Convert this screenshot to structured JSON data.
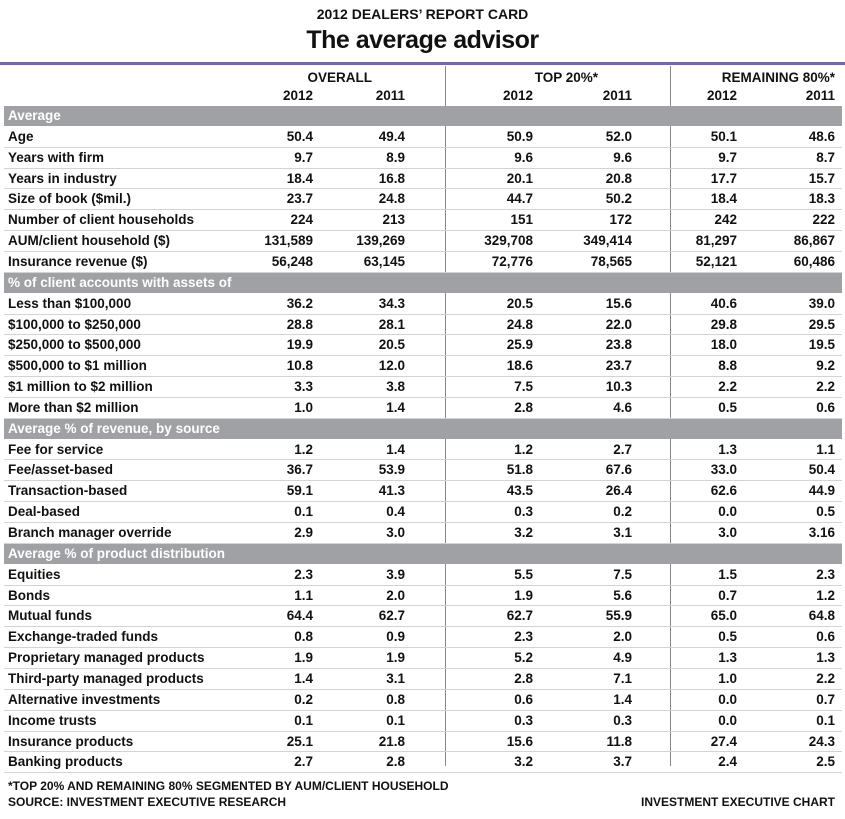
{
  "header": {
    "kicker": "2012 DEALERS’ REPORT CARD",
    "title": "The average advisor"
  },
  "columns": {
    "groups": [
      "OVERALL",
      "TOP 20%*",
      "REMAINING 80%*"
    ],
    "years": [
      "2012",
      "2011",
      "2012",
      "2011",
      "2012",
      "2011"
    ]
  },
  "sections": [
    {
      "title": "Average",
      "rows": [
        {
          "label": "Age",
          "values": [
            "50.4",
            "49.4",
            "50.9",
            "52.0",
            "50.1",
            "48.6"
          ]
        },
        {
          "label": "Years with firm",
          "values": [
            "9.7",
            "8.9",
            "9.6",
            "9.6",
            "9.7",
            "8.7"
          ]
        },
        {
          "label": "Years in industry",
          "values": [
            "18.4",
            "16.8",
            "20.1",
            "20.8",
            "17.7",
            "15.7"
          ]
        },
        {
          "label": "Size of book ($mil.)",
          "values": [
            "23.7",
            "24.8",
            "44.7",
            "50.2",
            "18.4",
            "18.3"
          ]
        },
        {
          "label": "Number of client households",
          "values": [
            "224",
            "213",
            "151",
            "172",
            "242",
            "222"
          ]
        },
        {
          "label": "AUM/client household ($)",
          "values": [
            "131,589",
            "139,269",
            "329,708",
            "349,414",
            "81,297",
            "86,867"
          ]
        },
        {
          "label": "Insurance revenue ($)",
          "values": [
            "56,248",
            "63,145",
            "72,776",
            "78,565",
            "52,121",
            "60,486"
          ]
        }
      ]
    },
    {
      "title": "% of client accounts with assets of",
      "rows": [
        {
          "label": "Less than $100,000",
          "values": [
            "36.2",
            "34.3",
            "20.5",
            "15.6",
            "40.6",
            "39.0"
          ]
        },
        {
          "label": "$100,000 to $250,000",
          "values": [
            "28.8",
            "28.1",
            "24.8",
            "22.0",
            "29.8",
            "29.5"
          ]
        },
        {
          "label": "$250,000 to $500,000",
          "values": [
            "19.9",
            "20.5",
            "25.9",
            "23.8",
            "18.0",
            "19.5"
          ]
        },
        {
          "label": "$500,000 to $1 million",
          "values": [
            "10.8",
            "12.0",
            "18.6",
            "23.7",
            "8.8",
            "9.2"
          ]
        },
        {
          "label": "$1 million to $2 million",
          "values": [
            "3.3",
            "3.8",
            "7.5",
            "10.3",
            "2.2",
            "2.2"
          ]
        },
        {
          "label": "More than $2 million",
          "values": [
            "1.0",
            "1.4",
            "2.8",
            "4.6",
            "0.5",
            "0.6"
          ]
        }
      ]
    },
    {
      "title": "Average % of revenue, by source",
      "rows": [
        {
          "label": "Fee for service",
          "values": [
            "1.2",
            "1.4",
            "1.2",
            "2.7",
            "1.3",
            "1.1"
          ]
        },
        {
          "label": "Fee/asset-based",
          "values": [
            "36.7",
            "53.9",
            "51.8",
            "67.6",
            "33.0",
            "50.4"
          ]
        },
        {
          "label": "Transaction-based",
          "values": [
            "59.1",
            "41.3",
            "43.5",
            "26.4",
            "62.6",
            "44.9"
          ]
        },
        {
          "label": "Deal-based",
          "values": [
            "0.1",
            "0.4",
            "0.3",
            "0.2",
            "0.0",
            "0.5"
          ]
        },
        {
          "label": "Branch manager override",
          "values": [
            "2.9",
            "3.0",
            "3.2",
            "3.1",
            "3.0",
            "3.16"
          ]
        }
      ]
    },
    {
      "title": "Average % of product distribution",
      "rows": [
        {
          "label": "Equities",
          "values": [
            "2.3",
            "3.9",
            "5.5",
            "7.5",
            "1.5",
            "2.3"
          ]
        },
        {
          "label": "Bonds",
          "values": [
            "1.1",
            "2.0",
            "1.9",
            "5.6",
            "0.7",
            "1.2"
          ]
        },
        {
          "label": "Mutual funds",
          "values": [
            "64.4",
            "62.7",
            "62.7",
            "55.9",
            "65.0",
            "64.8"
          ]
        },
        {
          "label": "Exchange-traded funds",
          "values": [
            "0.8",
            "0.9",
            "2.3",
            "2.0",
            "0.5",
            "0.6"
          ]
        },
        {
          "label": "Proprietary managed products",
          "values": [
            "1.9",
            "1.9",
            "5.2",
            "4.9",
            "1.3",
            "1.3"
          ]
        },
        {
          "label": "Third-party managed products",
          "values": [
            "1.4",
            "3.1",
            "2.8",
            "7.1",
            "1.0",
            "2.2"
          ]
        },
        {
          "label": "Alternative investments",
          "values": [
            "0.2",
            "0.8",
            "0.6",
            "1.4",
            "0.0",
            "0.7"
          ]
        },
        {
          "label": "Income trusts",
          "values": [
            "0.1",
            "0.1",
            "0.3",
            "0.3",
            "0.0",
            "0.1"
          ]
        },
        {
          "label": "Insurance products",
          "values": [
            "25.1",
            "21.8",
            "15.6",
            "11.8",
            "27.4",
            "24.3"
          ]
        },
        {
          "label": "Banking products",
          "values": [
            "2.7",
            "2.8",
            "3.2",
            "3.7",
            "2.4",
            "2.5"
          ]
        }
      ]
    }
  ],
  "footer": {
    "note": "*TOP 20% AND REMAINING 80% SEGMENTED BY AUM/CLIENT HOUSEHOLD",
    "source": "SOURCE: INVESTMENT EXECUTIVE RESEARCH",
    "credit": "INVESTMENT EXECUTIVE CHART"
  }
}
